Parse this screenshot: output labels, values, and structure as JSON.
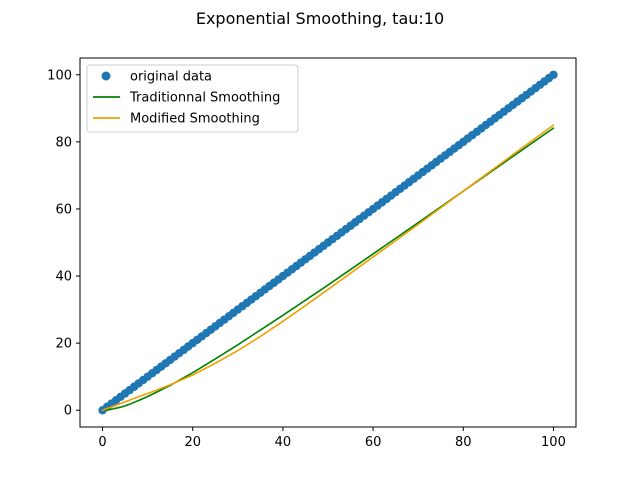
{
  "chart_data": {
    "type": "line",
    "title": "Exponential Smoothing, tau:10",
    "xlabel": "",
    "ylabel": "",
    "xlim": [
      -5,
      105
    ],
    "ylim": [
      -5,
      105
    ],
    "x_ticks": [
      0,
      20,
      40,
      60,
      80,
      100
    ],
    "y_ticks": [
      0,
      20,
      40,
      60,
      80,
      100
    ],
    "grid": false,
    "legend_position": "top-left",
    "tau": 10,
    "series": [
      {
        "name": "original data",
        "kind": "scatter",
        "color": "#1f77b4",
        "x": [
          0,
          1,
          2,
          3,
          4,
          5,
          6,
          7,
          8,
          9,
          10,
          11,
          12,
          13,
          14,
          15,
          16,
          17,
          18,
          19,
          20,
          21,
          22,
          23,
          24,
          25,
          26,
          27,
          28,
          29,
          30,
          31,
          32,
          33,
          34,
          35,
          36,
          37,
          38,
          39,
          40,
          41,
          42,
          43,
          44,
          45,
          46,
          47,
          48,
          49,
          50,
          51,
          52,
          53,
          54,
          55,
          56,
          57,
          58,
          59,
          60,
          61,
          62,
          63,
          64,
          65,
          66,
          67,
          68,
          69,
          70,
          71,
          72,
          73,
          74,
          75,
          76,
          77,
          78,
          79,
          80,
          81,
          82,
          83,
          84,
          85,
          86,
          87,
          88,
          89,
          90,
          91,
          92,
          93,
          94,
          95,
          96,
          97,
          98,
          99,
          100
        ],
        "y": [
          0,
          1,
          2,
          3,
          4,
          5,
          6,
          7,
          8,
          9,
          10,
          11,
          12,
          13,
          14,
          15,
          16,
          17,
          18,
          19,
          20,
          21,
          22,
          23,
          24,
          25,
          26,
          27,
          28,
          29,
          30,
          31,
          32,
          33,
          34,
          35,
          36,
          37,
          38,
          39,
          40,
          41,
          42,
          43,
          44,
          45,
          46,
          47,
          48,
          49,
          50,
          51,
          52,
          53,
          54,
          55,
          56,
          57,
          58,
          59,
          60,
          61,
          62,
          63,
          64,
          65,
          66,
          67,
          68,
          69,
          70,
          71,
          72,
          73,
          74,
          75,
          76,
          77,
          78,
          79,
          80,
          81,
          82,
          83,
          84,
          85,
          86,
          87,
          88,
          89,
          90,
          91,
          92,
          93,
          94,
          95,
          96,
          97,
          98,
          99,
          100
        ]
      },
      {
        "name": "Traditionnal Smoothing",
        "kind": "line",
        "color": "#008000",
        "x": [
          0,
          1,
          2,
          3,
          4,
          5,
          6,
          8,
          10,
          12,
          15,
          20,
          25,
          30,
          35,
          40,
          45,
          50,
          60,
          70,
          80,
          90,
          100
        ],
        "y": [
          0,
          0.1,
          0.3,
          0.6,
          0.9,
          1.3,
          1.8,
          2.9,
          4.1,
          5.4,
          7.4,
          11.2,
          15.3,
          19.5,
          23.9,
          28.3,
          32.8,
          37.3,
          46.6,
          55.9,
          65.3,
          74.7,
          84.1
        ]
      },
      {
        "name": "Modified Smoothing",
        "kind": "line",
        "color": "#f0a000",
        "x": [
          0,
          1,
          2,
          3,
          4,
          5,
          6,
          8,
          10,
          12,
          15,
          20,
          25,
          30,
          35,
          40,
          45,
          50,
          60,
          70,
          80,
          90,
          100
        ],
        "y": [
          0,
          0.5,
          1.0,
          1.5,
          2.0,
          2.5,
          3.0,
          4.0,
          5.0,
          6.0,
          7.6,
          10.5,
          14.0,
          17.8,
          22.0,
          26.5,
          31.2,
          36.0,
          45.7,
          55.4,
          65.3,
          75.2,
          85.0
        ]
      }
    ]
  }
}
